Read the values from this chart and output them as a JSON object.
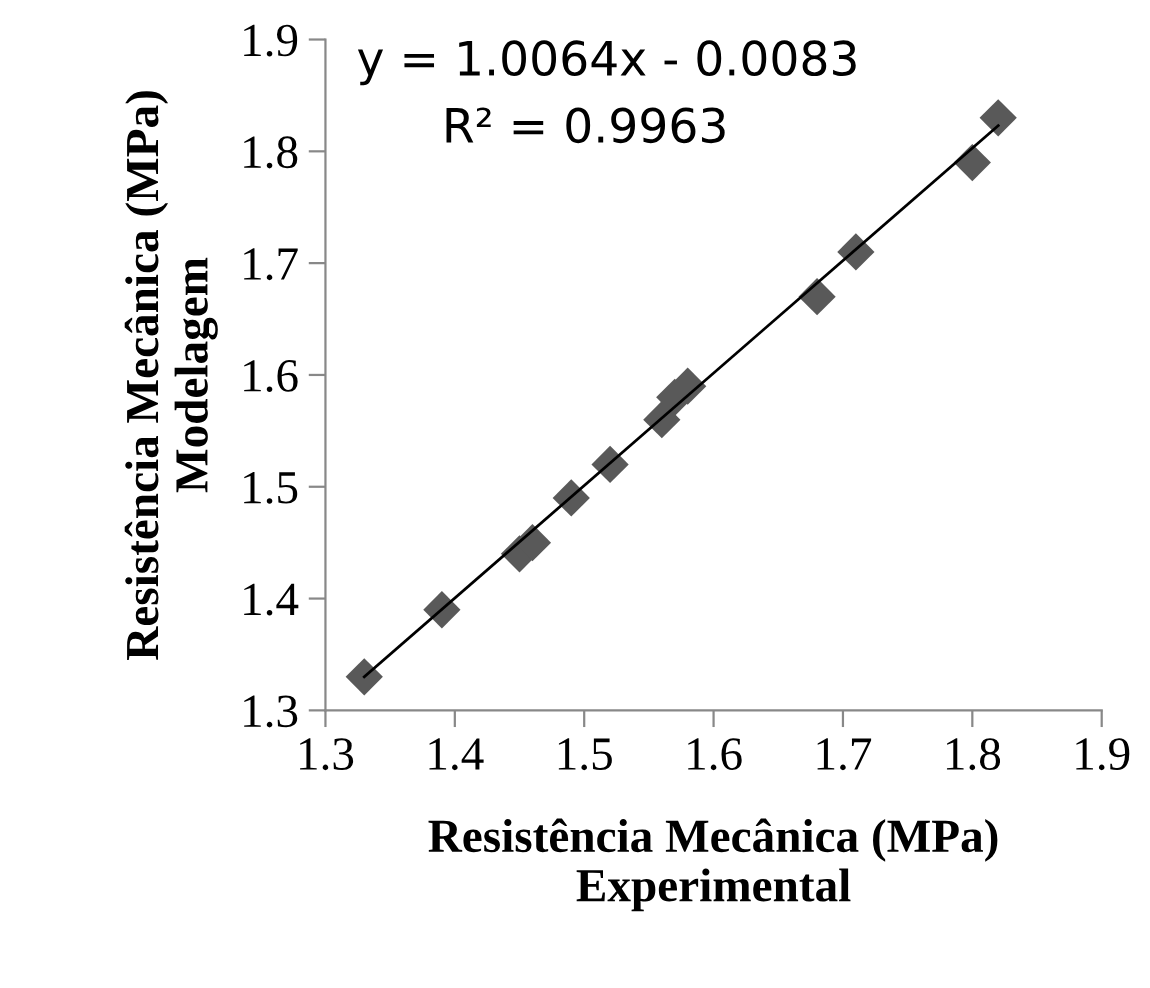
{
  "chart_data": {
    "type": "scatter",
    "xlabel": "Resistência Mecânica (MPa)\nExperimental",
    "ylabel": "Resistência Mecânica (MPa)\nModelagem",
    "annotations": [
      "y = 1.0064x - 0.0083",
      "R² = 0.9963"
    ],
    "xlim": [
      1.3,
      1.9
    ],
    "ylim": [
      1.3,
      1.9
    ],
    "xticks": [
      1.3,
      1.4,
      1.5,
      1.6,
      1.7,
      1.8,
      1.9
    ],
    "yticks": [
      1.3,
      1.4,
      1.5,
      1.6,
      1.7,
      1.8,
      1.9
    ],
    "grid": false,
    "legend": false,
    "marker": "diamond",
    "series": [
      {
        "color": "#595959",
        "x": [
          1.33,
          1.39,
          1.45,
          1.46,
          1.49,
          1.52,
          1.56,
          1.57,
          1.58,
          1.68,
          1.71,
          1.8,
          1.82
        ],
        "values": [
          1.33,
          1.39,
          1.44,
          1.45,
          1.49,
          1.52,
          1.56,
          1.58,
          1.59,
          1.67,
          1.71,
          1.79,
          1.83
        ]
      },
      {
        "type": "line",
        "color": "#000000",
        "line_style": "solid",
        "marker": "none",
        "x": [
          1.33,
          1.82
        ],
        "values": [
          1.33,
          1.823
        ]
      }
    ]
  }
}
